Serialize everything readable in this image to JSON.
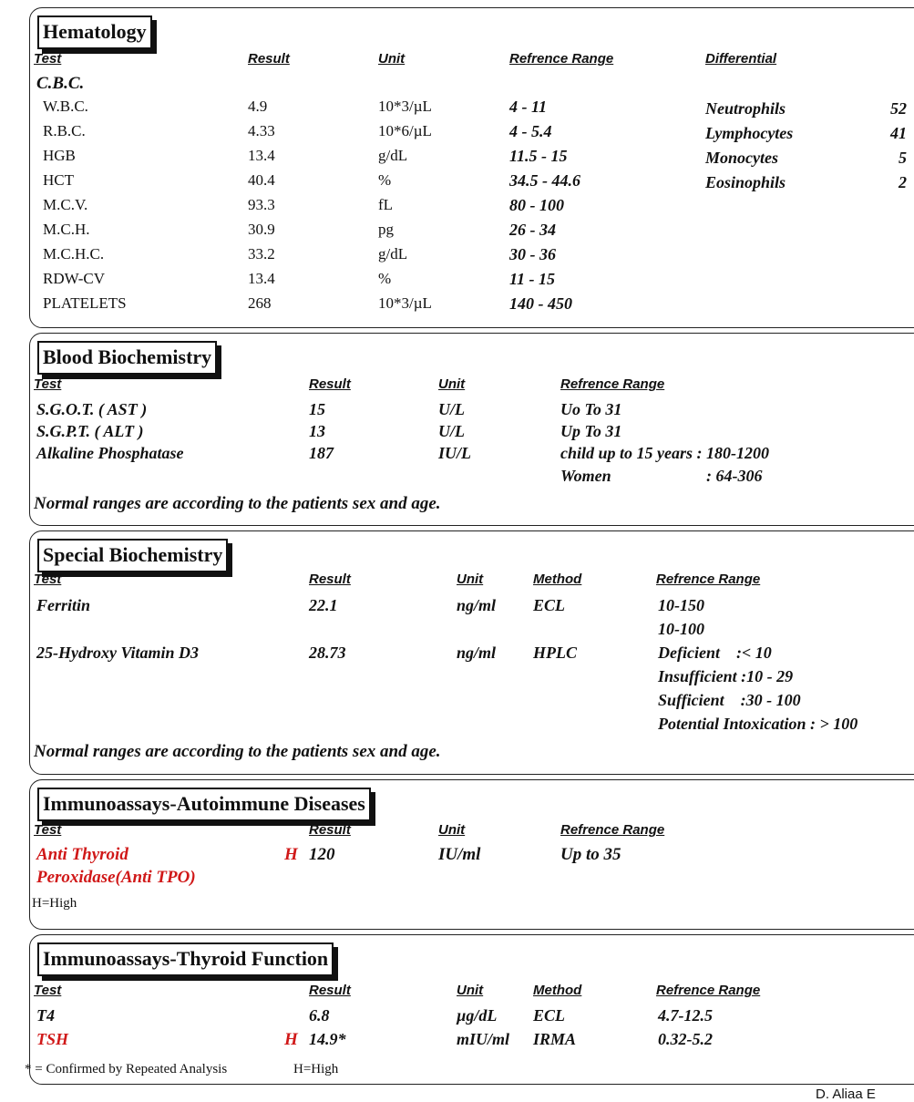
{
  "colors": {
    "flag_high": "#d01818",
    "text": "#111111"
  },
  "hematology": {
    "title": "Hematology",
    "headers": {
      "test": "Test",
      "result": "Result",
      "unit": "Unit",
      "range": "Refrence Range",
      "differential": "Differential"
    },
    "group": "C.B.C.",
    "rows": [
      {
        "test": "W.B.C.",
        "result": "4.9",
        "unit": "10*3/µL",
        "range": "4 - 11"
      },
      {
        "test": "R.B.C.",
        "result": "4.33",
        "unit": "10*6/µL",
        "range": "4 - 5.4"
      },
      {
        "test": "HGB",
        "result": "13.4",
        "unit": "g/dL",
        "range": "11.5 - 15"
      },
      {
        "test": "HCT",
        "result": "40.4",
        "unit": "%",
        "range": "34.5 - 44.6"
      },
      {
        "test": "M.C.V.",
        "result": "93.3",
        "unit": "fL",
        "range": "80 - 100"
      },
      {
        "test": "M.C.H.",
        "result": "30.9",
        "unit": "pg",
        "range": "26 - 34"
      },
      {
        "test": "M.C.H.C.",
        "result": "33.2",
        "unit": "g/dL",
        "range": "30 - 36"
      },
      {
        "test": "RDW-CV",
        "result": "13.4",
        "unit": "%",
        "range": "11 - 15"
      },
      {
        "test": "PLATELETS",
        "result": "268",
        "unit": "10*3/µL",
        "range": "140 - 450"
      }
    ],
    "differential": [
      {
        "name": "Neutrophils",
        "value": "52"
      },
      {
        "name": "Lymphocytes",
        "value": "41"
      },
      {
        "name": "Monocytes",
        "value": "5"
      },
      {
        "name": "Eosinophils",
        "value": "2"
      }
    ]
  },
  "blood_biochemistry": {
    "title": "Blood Biochemistry",
    "headers": {
      "test": "Test",
      "result": "Result",
      "unit": "Unit",
      "range": "Refrence Range"
    },
    "rows": [
      {
        "test": "S.G.O.T. ( AST )",
        "result": "15",
        "unit": "U/L",
        "range": "Uo To 31"
      },
      {
        "test": "S.G.P.T. ( ALT )",
        "result": "13",
        "unit": "U/L",
        "range": "Up To 31"
      },
      {
        "test": "Alkaline Phosphatase",
        "result": "187",
        "unit": "IU/L",
        "range": "child up to 15 years : 180-1200"
      }
    ],
    "extra_range": {
      "label": "Women",
      "value": ": 64-306"
    },
    "note": "Normal ranges are according to the patients sex and age."
  },
  "special_biochemistry": {
    "title": "Special Biochemistry",
    "headers": {
      "test": "Test",
      "result": "Result",
      "unit": "Unit",
      "method": "Method",
      "range": "Refrence Range"
    },
    "rows": [
      {
        "test": "Ferritin",
        "result": "22.1",
        "unit": "ng/ml",
        "method": "ECL",
        "ranges": [
          "10-150",
          "10-100"
        ]
      },
      {
        "test": "25-Hydroxy Vitamin D3",
        "result": "28.73",
        "unit": "ng/ml",
        "method": "HPLC",
        "ranges": [
          "Deficient    :< 10",
          "Insufficient :10 - 29",
          "Sufficient    :30 - 100",
          "Potential Intoxication : > 100"
        ]
      }
    ],
    "note": "Normal ranges are according to the patients sex and age."
  },
  "autoimmune": {
    "title": "Immunoassays-Autoimmune Diseases",
    "headers": {
      "test": "Test",
      "result": "Result",
      "unit": "Unit",
      "range": "Refrence Range"
    },
    "rows": [
      {
        "test_lines": [
          "Anti Thyroid",
          "Peroxidase(Anti TPO)"
        ],
        "flag": "H",
        "result": "120",
        "unit": "IU/ml",
        "range": "Up to 35"
      }
    ],
    "note": "H=High"
  },
  "thyroid": {
    "title": "Immunoassays-Thyroid Function",
    "headers": {
      "test": "Test",
      "result": "Result",
      "unit": "Unit",
      "method": "Method",
      "range": "Refrence Range"
    },
    "rows": [
      {
        "test": "T4",
        "flag": "",
        "result": "6.8",
        "unit": "µg/dL",
        "method": "ECL",
        "range": "4.7-12.5"
      },
      {
        "test": "TSH",
        "flag": "H",
        "result": "14.9*",
        "unit": "mIU/ml",
        "method": "IRMA",
        "range": "0.32-5.2"
      }
    ],
    "notes": [
      "* = Confirmed by Repeated Analysis",
      "H=High"
    ]
  },
  "footer": {
    "signature": "D. Aliaa E"
  }
}
